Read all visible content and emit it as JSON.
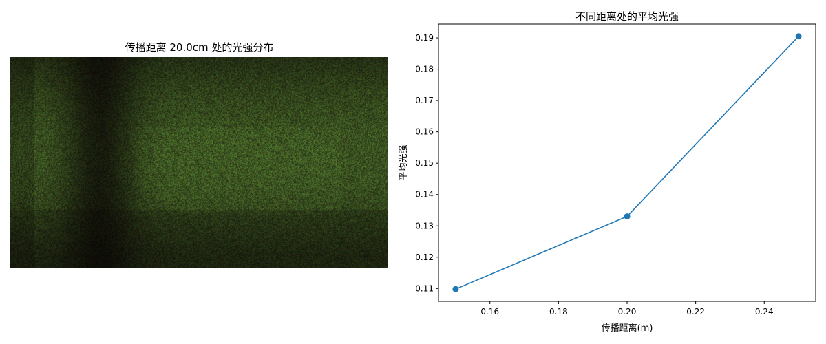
{
  "left_panel": {
    "title": "传播距离 20.0cm 处的光强分布"
  },
  "chart_data": {
    "type": "line",
    "title": "不同距离处的平均光强",
    "xlabel": "传播距离(m)",
    "ylabel": "平均光强",
    "x": [
      0.15,
      0.2,
      0.25
    ],
    "series": [
      {
        "values": [
          0.1098,
          0.133,
          0.1905
        ],
        "color": "#1f77b4",
        "marker": "circle"
      }
    ],
    "xlim": [
      0.145,
      0.255
    ],
    "ylim": [
      0.1059,
      0.1944
    ],
    "xticks": [
      "0.16",
      "0.18",
      "0.20",
      "0.22",
      "0.24"
    ],
    "yticks": [
      "0.11",
      "0.12",
      "0.13",
      "0.14",
      "0.15",
      "0.16",
      "0.17",
      "0.18",
      "0.19"
    ],
    "grid": false
  }
}
